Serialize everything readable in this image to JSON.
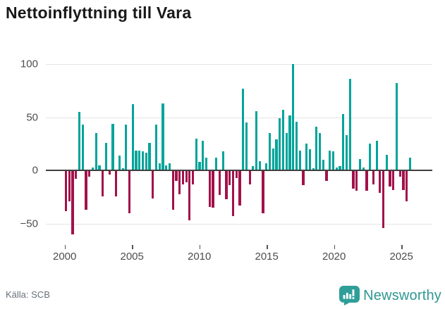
{
  "title": "Nettoinflyttning till Vara",
  "source": "Källa: SCB",
  "brand": {
    "name": "Newsworthy",
    "icon": "newsworthy-logo-icon",
    "text_color": "#2e9792",
    "icon_color": "#2f9e99"
  },
  "colors": {
    "positive_bar": "#00a49a",
    "negative_bar": "#a2114a",
    "gridline": "#e5e5e5",
    "zero_line": "#3f3f3f",
    "axis_text": "#4d4d4d",
    "title_text": "#191919",
    "source_text": "#697078",
    "background": "#ffffff"
  },
  "chart_data": {
    "type": "bar",
    "title": "Nettoinflyttning till Vara",
    "frequency": "quarterly",
    "start_period": "2000 Q1",
    "end_period": "2025 Q4",
    "x_ticks": [
      2000,
      2005,
      2010,
      2015,
      2020,
      2025
    ],
    "y_ticks": [
      100,
      50,
      0,
      -50
    ],
    "y_tick_labels": [
      "100",
      "50",
      "0",
      "−50"
    ],
    "ylim": [
      -70,
      110
    ],
    "grid": true,
    "legend": false,
    "xlabel": "",
    "ylabel": "",
    "values": [
      -38,
      -29,
      -60,
      -8,
      55,
      43,
      -37,
      -6,
      3,
      35,
      5,
      -24,
      26,
      -4,
      44,
      -24,
      14,
      2,
      43,
      -40,
      62,
      19,
      19,
      18,
      17,
      26,
      -26,
      43,
      7,
      63,
      5,
      7,
      -37,
      -10,
      -22,
      -13,
      -11,
      -47,
      -13,
      30,
      8,
      28,
      12,
      -34,
      -35,
      12,
      -23,
      18,
      -27,
      -14,
      -43,
      -7,
      -33,
      77,
      45,
      -13,
      4,
      56,
      9,
      -40,
      7,
      35,
      21,
      29,
      49,
      57,
      35,
      52,
      100,
      46,
      19,
      -14,
      25,
      20,
      2,
      41,
      35,
      10,
      -10,
      19,
      18,
      3,
      4,
      53,
      33,
      86,
      -17,
      -19,
      11,
      3,
      -19,
      25,
      -13,
      28,
      -21,
      -54,
      15,
      -15,
      -18,
      82,
      -6,
      -18,
      -29,
      12
    ]
  }
}
